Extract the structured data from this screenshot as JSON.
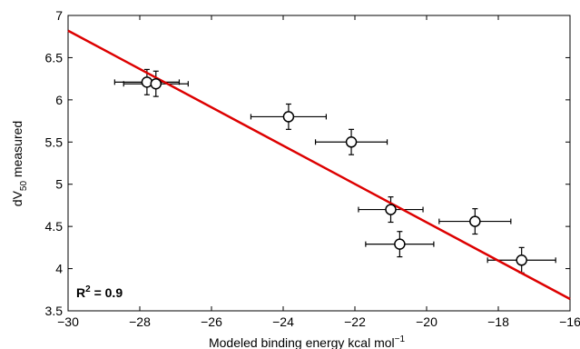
{
  "chart_data": {
    "type": "scatter",
    "xlabel": "Modeled binding energy kcal mol",
    "xlabel_sup": "−1",
    "ylabel_main": "dV",
    "ylabel_sub": "50",
    "ylabel_rest": " measured",
    "annotation": {
      "main": "R",
      "sup": "2",
      "rest": " = 0.9"
    },
    "xlim": [
      -30,
      -16
    ],
    "ylim": [
      3.5,
      7
    ],
    "xticks": [
      -30,
      -28,
      -26,
      -24,
      -22,
      -20,
      -18,
      -16
    ],
    "xtick_labels": [
      "−30",
      "−28",
      "−26",
      "−24",
      "−22",
      "−20",
      "−18",
      "−16"
    ],
    "yticks": [
      3.5,
      4,
      4.5,
      5,
      5.5,
      6,
      6.5,
      7
    ],
    "ytick_labels": [
      "3.5",
      "4",
      "4.5",
      "5",
      "5.5",
      "6",
      "6.5",
      "7"
    ],
    "grid": false,
    "points": [
      {
        "x": -27.8,
        "y": 6.21,
        "xerr": 0.9,
        "yerr": 0.15
      },
      {
        "x": -27.55,
        "y": 6.19,
        "xerr": 0.9,
        "yerr": 0.15
      },
      {
        "x": -23.85,
        "y": 5.8,
        "xerr": 1.05,
        "yerr": 0.15
      },
      {
        "x": -22.1,
        "y": 5.5,
        "xerr": 1.0,
        "yerr": 0.15
      },
      {
        "x": -21.0,
        "y": 4.7,
        "xerr": 0.9,
        "yerr": 0.15
      },
      {
        "x": -20.75,
        "y": 4.29,
        "xerr": 0.95,
        "yerr": 0.15
      },
      {
        "x": -18.65,
        "y": 4.56,
        "xerr": 1.0,
        "yerr": 0.15
      },
      {
        "x": -17.35,
        "y": 4.1,
        "xerr": 0.95,
        "yerr": 0.15
      }
    ],
    "fit_line": {
      "x": [
        -30,
        -16
      ],
      "y": [
        6.82,
        3.64
      ],
      "color": "#dd0000"
    },
    "marker_fill": "#ffffff",
    "marker_edge": "#000000"
  }
}
